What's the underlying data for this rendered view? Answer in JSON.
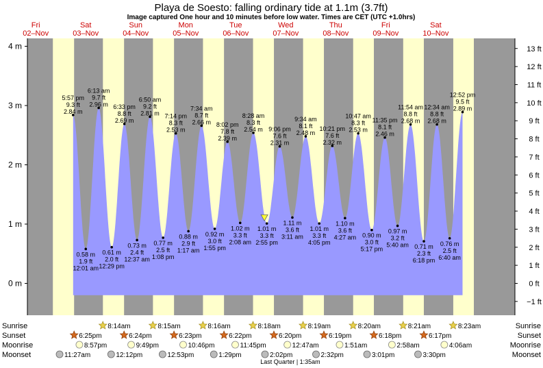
{
  "header": {
    "title": "Playa de Soesto: falling  ordinary tide at 1.1m (3.7ft)",
    "subtitle": "Image captured One hour and 10 minutes before low water. Times are CET (UTC +1.0hrs)"
  },
  "colors": {
    "day": "#ffffcc",
    "night": "#999999",
    "tide_fill": "#9999ff",
    "day_label": "#cc0000",
    "marker": "#ffff33"
  },
  "chart_data": {
    "type": "area",
    "title": "Playa de Soesto: falling  ordinary tide at 1.1m (3.7ft)",
    "y_left_unit": "m",
    "y_left_ticks": [
      "4 m",
      "3 m",
      "2 m",
      "1 m",
      "0 m"
    ],
    "y_left_range": [
      -0.4,
      4.1
    ],
    "y_right_ticks": [
      "13 ft",
      "12 ft",
      "11 ft",
      "10 ft",
      "9 ft",
      "8 ft",
      "7 ft",
      "6 ft",
      "5 ft",
      "4 ft",
      "3 ft",
      "2 ft",
      "1 ft",
      "0 ft",
      "−1 ft"
    ],
    "x_range_hours": [
      -4,
      230
    ],
    "days": [
      {
        "dow": "Fri",
        "date": "02–Nov"
      },
      {
        "dow": "Sat",
        "date": "03–Nov"
      },
      {
        "dow": "Sun",
        "date": "04–Nov"
      },
      {
        "dow": "Mon",
        "date": "05–Nov"
      },
      {
        "dow": "Tue",
        "date": "06–Nov"
      },
      {
        "dow": "Wed",
        "date": "07–Nov"
      },
      {
        "dow": "Thu",
        "date": "08–Nov"
      },
      {
        "dow": "Fri",
        "date": "09–Nov"
      },
      {
        "dow": "Sat",
        "date": "10–Nov"
      }
    ],
    "tides": [
      {
        "time": "5:57 pm",
        "ft": "9.3 ft",
        "m": "2.84 m",
        "type": "high",
        "h": 17.95,
        "v": 2.84
      },
      {
        "time": "12:01 am",
        "ft": "1.9 ft",
        "m": "0.58 m",
        "type": "low",
        "h": 24.02,
        "v": 0.58
      },
      {
        "time": "6:13 am",
        "ft": "9.7 ft",
        "m": "2.96 m",
        "type": "high",
        "h": 30.22,
        "v": 2.96
      },
      {
        "time": "12:29 pm",
        "ft": "2.0 ft",
        "m": "0.61 m",
        "type": "low",
        "h": 36.48,
        "v": 0.61
      },
      {
        "time": "6:33 pm",
        "ft": "8.8 ft",
        "m": "2.69 m",
        "type": "high",
        "h": 42.55,
        "v": 2.69
      },
      {
        "time": "12:37 am",
        "ft": "2.4 ft",
        "m": "0.73 m",
        "type": "low",
        "h": 48.62,
        "v": 0.73
      },
      {
        "time": "6:50 am",
        "ft": "9.2 ft",
        "m": "2.81 m",
        "type": "high",
        "h": 54.83,
        "v": 2.81
      },
      {
        "time": "1:08 pm",
        "ft": "2.5 ft",
        "m": "0.77 m",
        "type": "low",
        "h": 61.13,
        "v": 0.77
      },
      {
        "time": "7:14 pm",
        "ft": "8.3 ft",
        "m": "2.53 m",
        "type": "high",
        "h": 67.23,
        "v": 2.53
      },
      {
        "time": "1:17 am",
        "ft": "2.9 ft",
        "m": "0.88 m",
        "type": "low",
        "h": 73.28,
        "v": 0.88
      },
      {
        "time": "7:34 am",
        "ft": "8.7 ft",
        "m": "2.66 m",
        "type": "high",
        "h": 79.57,
        "v": 2.66
      },
      {
        "time": "1:55 pm",
        "ft": "3.0 ft",
        "m": "0.92 m",
        "type": "low",
        "h": 85.92,
        "v": 0.92
      },
      {
        "time": "8:02 pm",
        "ft": "7.8 ft",
        "m": "2.39 m",
        "type": "high",
        "h": 92.03,
        "v": 2.39
      },
      {
        "time": "2:08 am",
        "ft": "3.3 ft",
        "m": "1.02 m",
        "type": "low",
        "h": 98.13,
        "v": 1.02
      },
      {
        "time": "8:28 am",
        "ft": "8.3 ft",
        "m": "2.54 m",
        "type": "high",
        "h": 104.47,
        "v": 2.54
      },
      {
        "time": "2:55 pm",
        "ft": "3.3 ft",
        "m": "1.01 m",
        "type": "low",
        "h": 110.92,
        "v": 1.01
      },
      {
        "time": "9:06 pm",
        "ft": "7.6 ft",
        "m": "2.31 m",
        "type": "high",
        "h": 117.1,
        "v": 2.31
      },
      {
        "time": "3:11 am",
        "ft": "3.6 ft",
        "m": "1.11 m",
        "type": "low",
        "h": 123.18,
        "v": 1.11
      },
      {
        "time": "9:34 am",
        "ft": "8.1 ft",
        "m": "2.48 m",
        "type": "high",
        "h": 129.57,
        "v": 2.48
      },
      {
        "time": "4:05 pm",
        "ft": "3.3 ft",
        "m": "1.01 m",
        "type": "low",
        "h": 136.08,
        "v": 1.01
      },
      {
        "time": "10:21 pm",
        "ft": "7.6 ft",
        "m": "2.32 m",
        "type": "high",
        "h": 142.35,
        "v": 2.32
      },
      {
        "time": "4:27 am",
        "ft": "3.6 ft",
        "m": "1.10 m",
        "type": "low",
        "h": 148.45,
        "v": 1.1
      },
      {
        "time": "10:47 am",
        "ft": "8.3 ft",
        "m": "2.53 m",
        "type": "high",
        "h": 154.78,
        "v": 2.53
      },
      {
        "time": "5:17 pm",
        "ft": "3.0 ft",
        "m": "0.90 m",
        "type": "low",
        "h": 161.28,
        "v": 0.9
      },
      {
        "time": "11:35 pm",
        "ft": "8.1 ft",
        "m": "2.46 m",
        "type": "high",
        "h": 167.58,
        "v": 2.46
      },
      {
        "time": "5:40 am",
        "ft": "3.2 ft",
        "m": "0.97 m",
        "type": "low",
        "h": 173.67,
        "v": 0.97
      },
      {
        "time": "11:54 am",
        "ft": "8.8 ft",
        "m": "2.68 m",
        "type": "high",
        "h": 179.9,
        "v": 2.68
      },
      {
        "time": "6:18 pm",
        "ft": "2.3 ft",
        "m": "0.71 m",
        "type": "low",
        "h": 186.3,
        "v": 0.71
      },
      {
        "time": "12:34 am",
        "ft": "8.8 ft",
        "m": "2.68 m",
        "type": "high",
        "h": 192.57,
        "v": 2.68
      },
      {
        "time": "6:40 am",
        "ft": "2.5 ft",
        "m": "0.76 m",
        "type": "low",
        "h": 198.67,
        "v": 0.76
      },
      {
        "time": "12:52 pm",
        "ft": "9.5 ft",
        "m": "2.89 m",
        "type": "high",
        "h": 204.87,
        "v": 2.89
      }
    ],
    "current": {
      "h": 109.75,
      "v": 1.1
    },
    "nights": [
      [
        -4,
        8.23
      ],
      [
        18.42,
        32.25
      ],
      [
        42.4,
        56.27
      ],
      [
        66.38,
        80.28
      ],
      [
        90.37,
        104.3
      ],
      [
        114.33,
        128.32
      ],
      [
        138.32,
        152.35
      ],
      [
        162.3,
        176.37
      ],
      [
        186.28,
        200.4
      ],
      [
        210.28,
        230
      ]
    ],
    "row_labels": {
      "sunrise": "Sunrise",
      "sunset": "Sunset",
      "moonrise": "Moonrise",
      "moonset": "Moonset"
    },
    "sunrise": [
      {
        "t": "8:14am",
        "h": 32.23
      },
      {
        "t": "8:15am",
        "h": 56.25
      },
      {
        "t": "8:16am",
        "h": 80.27
      },
      {
        "t": "8:18am",
        "h": 104.3
      },
      {
        "t": "8:19am",
        "h": 128.32
      },
      {
        "t": "8:20am",
        "h": 152.33
      },
      {
        "t": "8:21am",
        "h": 176.35
      },
      {
        "t": "8:23am",
        "h": 200.38
      }
    ],
    "sunset": [
      {
        "t": "6:25pm",
        "h": 18.42
      },
      {
        "t": "6:24pm",
        "h": 42.4
      },
      {
        "t": "6:23pm",
        "h": 66.38
      },
      {
        "t": "6:22pm",
        "h": 90.37
      },
      {
        "t": "6:20pm",
        "h": 114.33
      },
      {
        "t": "6:19pm",
        "h": 138.32
      },
      {
        "t": "6:18pm",
        "h": 162.3
      },
      {
        "t": "6:17pm",
        "h": 186.28
      }
    ],
    "moonrise": [
      {
        "t": "8:57pm",
        "h": 20.95
      },
      {
        "t": "9:49pm",
        "h": 45.82
      },
      {
        "t": "10:46pm",
        "h": 70.77
      },
      {
        "t": "11:45pm",
        "h": 95.75
      },
      {
        "t": "12:47am",
        "h": 120.78
      },
      {
        "t": "1:51am",
        "h": 145.85
      },
      {
        "t": "2:58am",
        "h": 170.97
      },
      {
        "t": "4:06am",
        "h": 196.1
      }
    ],
    "moonset": [
      {
        "t": "11:27am",
        "h": 11.45
      },
      {
        "t": "12:12pm",
        "h": 36.2
      },
      {
        "t": "12:53pm",
        "h": 60.88
      },
      {
        "t": "1:29pm",
        "h": 85.48
      },
      {
        "t": "2:02pm",
        "h": 110.03
      },
      {
        "t": "2:32pm",
        "h": 134.53
      },
      {
        "t": "3:01pm",
        "h": 159.02
      },
      {
        "t": "3:30pm",
        "h": 183.5
      }
    ],
    "moon_phase": "Last Quarter | 1:35am"
  }
}
